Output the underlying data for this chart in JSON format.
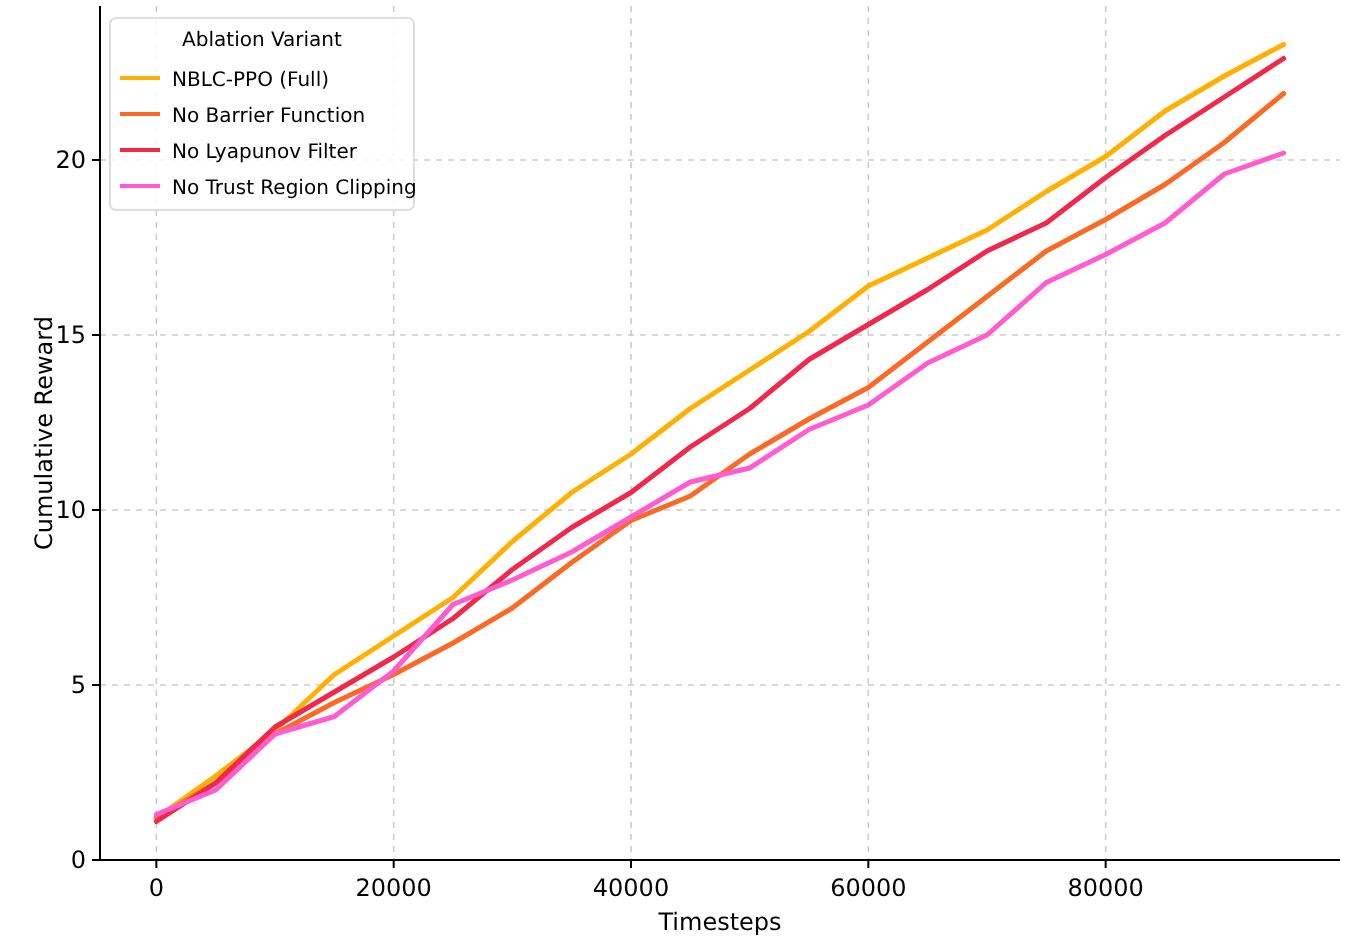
{
  "chart_data": {
    "type": "line",
    "xlabel": "Timesteps",
    "ylabel": "Cumulative Reward",
    "legend_title": "Ablation Variant",
    "legend": "top left",
    "grid": true,
    "line_style": "solid",
    "marker": "none",
    "x": [
      0,
      5000,
      10000,
      15000,
      20000,
      25000,
      30000,
      35000,
      40000,
      45000,
      50000,
      55000,
      60000,
      65000,
      70000,
      75000,
      80000,
      85000,
      90000,
      95000
    ],
    "xlim": [
      -4750,
      99750
    ],
    "xticks": [
      0,
      20000,
      40000,
      60000,
      80000
    ],
    "ylim": [
      0,
      24.4
    ],
    "yticks": [
      0,
      5,
      10,
      15,
      20
    ],
    "series": [
      {
        "name": "NBLC-PPO (Full)",
        "color": "#ffb000",
        "values": [
          1.2,
          2.4,
          3.7,
          5.3,
          6.4,
          7.5,
          9.1,
          10.5,
          11.6,
          12.9,
          14.0,
          15.1,
          16.4,
          17.2,
          18.0,
          19.1,
          20.1,
          21.4,
          22.4,
          23.3
        ]
      },
      {
        "name": "No Barrier Function",
        "color": "#fb6a25",
        "values": [
          1.2,
          2.2,
          3.6,
          4.5,
          5.3,
          6.2,
          7.2,
          8.5,
          9.7,
          10.4,
          11.6,
          12.6,
          13.5,
          14.8,
          16.1,
          17.4,
          18.3,
          19.3,
          20.5,
          21.9
        ]
      },
      {
        "name": "No Lyapunov Filter",
        "color": "#f0284a",
        "values": [
          1.1,
          2.2,
          3.8,
          4.8,
          5.8,
          6.9,
          8.3,
          9.5,
          10.5,
          11.8,
          12.9,
          14.3,
          15.3,
          16.3,
          17.4,
          18.2,
          19.5,
          20.7,
          21.8,
          22.9
        ]
      },
      {
        "name": "No Trust Region Clipping",
        "color": "#ff5ccf",
        "values": [
          1.3,
          2.0,
          3.6,
          4.1,
          5.4,
          7.3,
          8.0,
          8.8,
          9.8,
          10.8,
          11.2,
          12.3,
          13.0,
          14.2,
          15.0,
          16.5,
          17.3,
          18.2,
          19.6,
          20.2
        ]
      }
    ]
  }
}
